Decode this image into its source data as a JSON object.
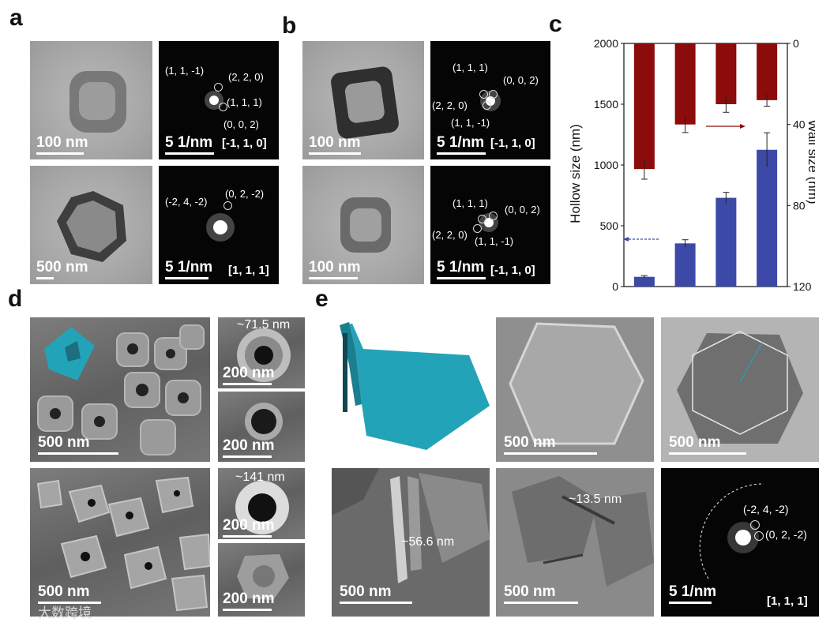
{
  "panel_labels": {
    "a": "a",
    "b": "b",
    "c": "c",
    "d": "d",
    "e": "e"
  },
  "panel_a": {
    "top_tem_scale": "100 nm",
    "top_fft": {
      "idx1": "(1, 1, -1)",
      "idx2": "(2, 2, 0)",
      "idx3": "(1, 1, 1)",
      "idx4": "(0, 0, 2)",
      "scale": "5 1/nm",
      "zone": "[-1, 1, 0]"
    },
    "bottom_tem_scale": "500 nm",
    "bottom_fft": {
      "idx1": "(-2, 4, -2)",
      "idx2": "(0, 2, -2)",
      "scale": "5 1/nm",
      "zone": "[1, 1, 1]"
    }
  },
  "panel_b": {
    "top_tem_scale": "100 nm",
    "top_fft": {
      "idx1": "(1, 1, 1)",
      "idx2": "(0, 0, 2)",
      "idx3": "(2, 2, 0)",
      "idx4": "(1, 1, -1)",
      "scale": "5 1/nm",
      "zone": "[-1, 1, 0]"
    },
    "bottom_tem_scale": "100 nm",
    "bottom_fft": {
      "idx1": "(1, 1, 1)",
      "idx2": "(0, 0, 2)",
      "idx3": "(2, 2, 0)",
      "idx4": "(1, 1, -1)",
      "scale": "5 1/nm",
      "zone": "[-1, 1, 0]"
    }
  },
  "panel_d": {
    "top_main_scale": "500 nm",
    "top_inset1_label": "~71.5 nm",
    "top_inset1_scale": "200 nm",
    "top_inset2_scale": "200 nm",
    "bottom_main_scale": "500 nm",
    "bottom_inset1_label": "~141 nm",
    "bottom_inset1_scale": "200 nm",
    "bottom_inset2_scale": "200 nm"
  },
  "panel_e": {
    "sem_scale": "500 nm",
    "tem_scale": "500 nm",
    "wall_scale": "500 nm",
    "wall_label": "~56.6 nm",
    "hr_scale": "500 nm",
    "hr_label": "~13.5 nm",
    "fft": {
      "idx1": "(-2, 4, -2)",
      "idx2": "(0, 2, -2)",
      "scale": "5 1/nm",
      "zone": "[1, 1, 1]"
    }
  },
  "watermark": "大数跨境",
  "colors": {
    "hollow_bar": "#3c49a6",
    "wall_bar": "#8c0b0b",
    "model": "#23a3b8"
  },
  "chart_data": {
    "type": "bar",
    "ylabel_left": "Hollow size (nm)",
    "ylabel_right": "Wall size (nm)",
    "left_ticks": [
      "0",
      "500",
      "1000",
      "1500",
      "2000"
    ],
    "right_ticks": [
      "0",
      "40",
      "80",
      "120"
    ],
    "left_ylim": [
      0,
      2000
    ],
    "right_ylim": [
      0,
      120
    ],
    "right_axis_inverted": true,
    "series": [
      {
        "values": [
          80,
          355,
          730,
          1125
        ],
        "errors": [
          10,
          30,
          45,
          140
        ]
      },
      {
        "values": [
          62,
          40,
          30,
          28
        ],
        "errors": [
          5,
          4,
          4,
          3
        ]
      }
    ]
  }
}
